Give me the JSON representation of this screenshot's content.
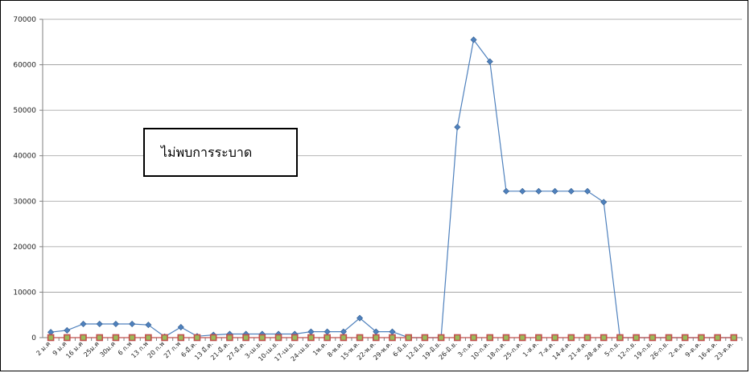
{
  "chart_data": {
    "type": "line",
    "title": "",
    "xlabel": "",
    "ylabel": "",
    "ylim": [
      0,
      70000
    ],
    "yticks": [
      0,
      10000,
      20000,
      30000,
      40000,
      50000,
      60000,
      70000
    ],
    "grid": true,
    "legend": "none",
    "categories": [
      "2 ม.ค",
      "9 ม.ค",
      "16 ม.ค",
      "25ม.ค",
      "30ม.ค",
      "6 ก.พ",
      "13 ก.พ",
      "20 ก.พ",
      "27 ก.พ",
      "6-มี.ค.",
      "13 มี.ค.",
      "21-มี.ค.",
      "27-มี.ค.",
      "3-เม.ย.",
      "10-เม.ย.",
      "17-เม.ย.",
      "24-เม.ย.",
      "1พ.ค.",
      "8-พ.ค.",
      "15-พ.ค.",
      "22-พ.ค.",
      "29-พ.ค.",
      "6-มิ.ย.",
      "12-มิ.ย.",
      "19-มิ.ย.",
      "26-มิ.ย.",
      "3-ก.ค.",
      "10-ก.ค.",
      "18-ก.ค.",
      "25-ก.ค.",
      "1-ส.ค.",
      "7-ส.ค.",
      "14-ส.ค.",
      "21-ส.ค.",
      "28-ส.ค.",
      "5-ก.ย.",
      "12-ก.ย.",
      "19-ก.ย.",
      "26-ก.ย.",
      "2-ต.ค.",
      "9-ต.ค.",
      "16-ต.ค.",
      "23-ต.ค."
    ],
    "series": [
      {
        "color": "#4F81BD",
        "marker": "diamond",
        "values": [
          1200,
          1600,
          3000,
          3000,
          3000,
          3000,
          2800,
          200,
          2300,
          300,
          600,
          800,
          800,
          800,
          800,
          800,
          1300,
          1300,
          1300,
          4300,
          1300,
          1300,
          0,
          0,
          0,
          46300,
          65500,
          60700,
          32200,
          32200,
          32200,
          32200,
          32200,
          32200,
          29800,
          0,
          0,
          0,
          0,
          0,
          0,
          0,
          0
        ]
      },
      {
        "color": "#C0504D",
        "fill": "#9BBB59",
        "marker": "square",
        "values": [
          0,
          0,
          0,
          0,
          0,
          0,
          0,
          0,
          0,
          0,
          0,
          0,
          0,
          0,
          0,
          0,
          0,
          0,
          0,
          0,
          0,
          0,
          0,
          0,
          0,
          0,
          0,
          0,
          0,
          0,
          0,
          0,
          0,
          0,
          0,
          0,
          0,
          0,
          0,
          0,
          0,
          0,
          0
        ]
      }
    ]
  },
  "annotation": {
    "text": "ไม่พบการระบาด"
  }
}
